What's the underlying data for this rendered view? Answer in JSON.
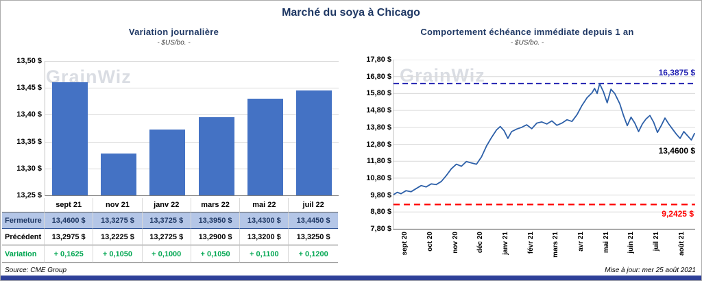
{
  "page": {
    "title": "Marché du soya à Chicago",
    "source_note": "Source: CME Group",
    "update_note": "Mise à jour: mer 25 août 2021",
    "watermark": "GrainWiz",
    "accent_bar_color": "#2E4099"
  },
  "left_panel": {
    "title": "Variation journalière",
    "subtitle": "- $US/bo. -"
  },
  "right_panel": {
    "title": "Comportement échéance immédiate depuis 1 an",
    "subtitle": "- $US/bo. -",
    "annotations": {
      "max_label": "16,3875 $",
      "last_label": "13,4600 $",
      "min_label": "9,2425 $"
    }
  },
  "chart_data": [
    {
      "type": "bar",
      "title": "Variation journalière",
      "subtitle": "- $US/bo. -",
      "unit": "$US/bo.",
      "categories": [
        "sept 21",
        "nov 21",
        "janv 22",
        "mars 22",
        "mai 22",
        "juil 22"
      ],
      "y_ticks_labels": [
        "13,50 $",
        "13,45 $",
        "13,40 $",
        "13,35 $",
        "13,30 $",
        "13,25 $"
      ],
      "ylim": [
        13.25,
        13.5
      ],
      "grid": true,
      "bar_color": "#4472C4",
      "plotted_series": "Fermeture",
      "series": [
        {
          "name": "Fermeture",
          "values": [
            13.46,
            13.3275,
            13.3725,
            13.395,
            13.43,
            13.445
          ],
          "display": [
            "13,4600 $",
            "13,3275 $",
            "13,3725 $",
            "13,3950 $",
            "13,4300 $",
            "13,4450 $"
          ]
        },
        {
          "name": "Précédent",
          "values": [
            13.2975,
            13.2225,
            13.2725,
            13.29,
            13.32,
            13.325
          ],
          "display": [
            "13,2975 $",
            "13,2225 $",
            "13,2725 $",
            "13,2900 $",
            "13,3200 $",
            "13,3250 $"
          ]
        },
        {
          "name": "Variation",
          "values": [
            0.1625,
            0.105,
            0.1,
            0.105,
            0.11,
            0.12
          ],
          "display": [
            "+ 0,1625",
            "+ 0,1050",
            "+ 0,1000",
            "+ 0,1050",
            "+ 0,1100",
            "+ 0,1200"
          ]
        }
      ]
    },
    {
      "type": "line",
      "title": "Comportement échéance immédiate depuis 1 an",
      "subtitle": "- $US/bo. -",
      "unit": "$US/bo.",
      "x_labels": [
        "sept 20",
        "oct 20",
        "nov 20",
        "déc 20",
        "janv 21",
        "févr 21",
        "mars 21",
        "avr 21",
        "mai 21",
        "juin 21",
        "juil 21",
        "août 21"
      ],
      "ylim": [
        7.8,
        17.8
      ],
      "y_ticks_labels": [
        "17,80 $",
        "16,80 $",
        "15,80 $",
        "14,80 $",
        "13,80 $",
        "12,80 $",
        "11,80 $",
        "10,80 $",
        "9,80 $",
        "8,80 $",
        "7,80 $"
      ],
      "grid": true,
      "line_color": "#2C5FA8",
      "max_line": {
        "value": 16.3875,
        "color": "#2222B2",
        "style": "dashed"
      },
      "min_line": {
        "value": 9.2425,
        "color": "#FF0000",
        "style": "dashed"
      },
      "last_value": 13.46,
      "points": [
        [
          0,
          9.82
        ],
        [
          0.15,
          9.96
        ],
        [
          0.3,
          9.88
        ],
        [
          0.5,
          10.06
        ],
        [
          0.7,
          10.0
        ],
        [
          0.9,
          10.18
        ],
        [
          1.1,
          10.36
        ],
        [
          1.3,
          10.28
        ],
        [
          1.5,
          10.46
        ],
        [
          1.7,
          10.42
        ],
        [
          1.9,
          10.6
        ],
        [
          2.1,
          10.95
        ],
        [
          2.3,
          11.35
        ],
        [
          2.5,
          11.62
        ],
        [
          2.7,
          11.5
        ],
        [
          2.9,
          11.78
        ],
        [
          3.1,
          11.7
        ],
        [
          3.3,
          11.62
        ],
        [
          3.5,
          12.05
        ],
        [
          3.7,
          12.7
        ],
        [
          3.9,
          13.2
        ],
        [
          4.1,
          13.65
        ],
        [
          4.25,
          13.85
        ],
        [
          4.4,
          13.6
        ],
        [
          4.55,
          13.15
        ],
        [
          4.7,
          13.55
        ],
        [
          4.9,
          13.7
        ],
        [
          5.1,
          13.8
        ],
        [
          5.3,
          13.95
        ],
        [
          5.5,
          13.72
        ],
        [
          5.7,
          14.05
        ],
        [
          5.9,
          14.12
        ],
        [
          6.1,
          14.0
        ],
        [
          6.3,
          14.18
        ],
        [
          6.5,
          13.92
        ],
        [
          6.7,
          14.05
        ],
        [
          6.9,
          14.25
        ],
        [
          7.1,
          14.15
        ],
        [
          7.3,
          14.55
        ],
        [
          7.5,
          15.1
        ],
        [
          7.7,
          15.55
        ],
        [
          7.9,
          15.85
        ],
        [
          8.0,
          16.1
        ],
        [
          8.1,
          15.8
        ],
        [
          8.2,
          16.38
        ],
        [
          8.35,
          15.9
        ],
        [
          8.5,
          15.25
        ],
        [
          8.65,
          16.05
        ],
        [
          8.8,
          15.8
        ],
        [
          9.0,
          15.2
        ],
        [
          9.15,
          14.5
        ],
        [
          9.3,
          13.9
        ],
        [
          9.45,
          14.4
        ],
        [
          9.6,
          14.05
        ],
        [
          9.75,
          13.55
        ],
        [
          9.9,
          14.0
        ],
        [
          10.05,
          14.3
        ],
        [
          10.2,
          14.5
        ],
        [
          10.35,
          14.1
        ],
        [
          10.5,
          13.5
        ],
        [
          10.65,
          13.9
        ],
        [
          10.8,
          14.35
        ],
        [
          10.95,
          14.0
        ],
        [
          11.1,
          13.7
        ],
        [
          11.25,
          13.4
        ],
        [
          11.4,
          13.15
        ],
        [
          11.55,
          13.55
        ],
        [
          11.7,
          13.3
        ],
        [
          11.85,
          13.05
        ],
        [
          11.98,
          13.46
        ]
      ]
    }
  ]
}
